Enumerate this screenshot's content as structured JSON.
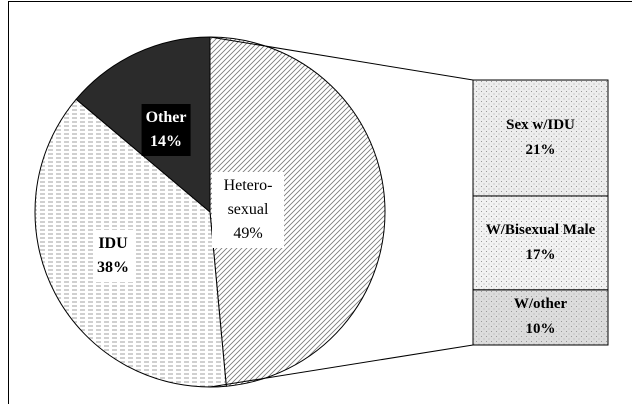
{
  "chart_data": {
    "type": "pie-of-bar",
    "categories": [
      "Hetero-sexual",
      "IDU",
      "Other"
    ],
    "values": [
      49,
      38,
      14
    ],
    "value_labels": [
      "49%",
      "38%",
      "14%"
    ],
    "colors": [
      "#777777",
      "#888888",
      "#2b2b2b"
    ],
    "breakdown": {
      "categories": [
        "Sex w/IDU",
        "W/Bisexual Male",
        "W/other"
      ],
      "values": [
        21,
        17,
        10
      ],
      "value_labels": [
        "21%",
        "17%",
        "10%"
      ],
      "colors": [
        "#ededed",
        "#f2f2f2",
        "#dcdcdc"
      ]
    }
  }
}
